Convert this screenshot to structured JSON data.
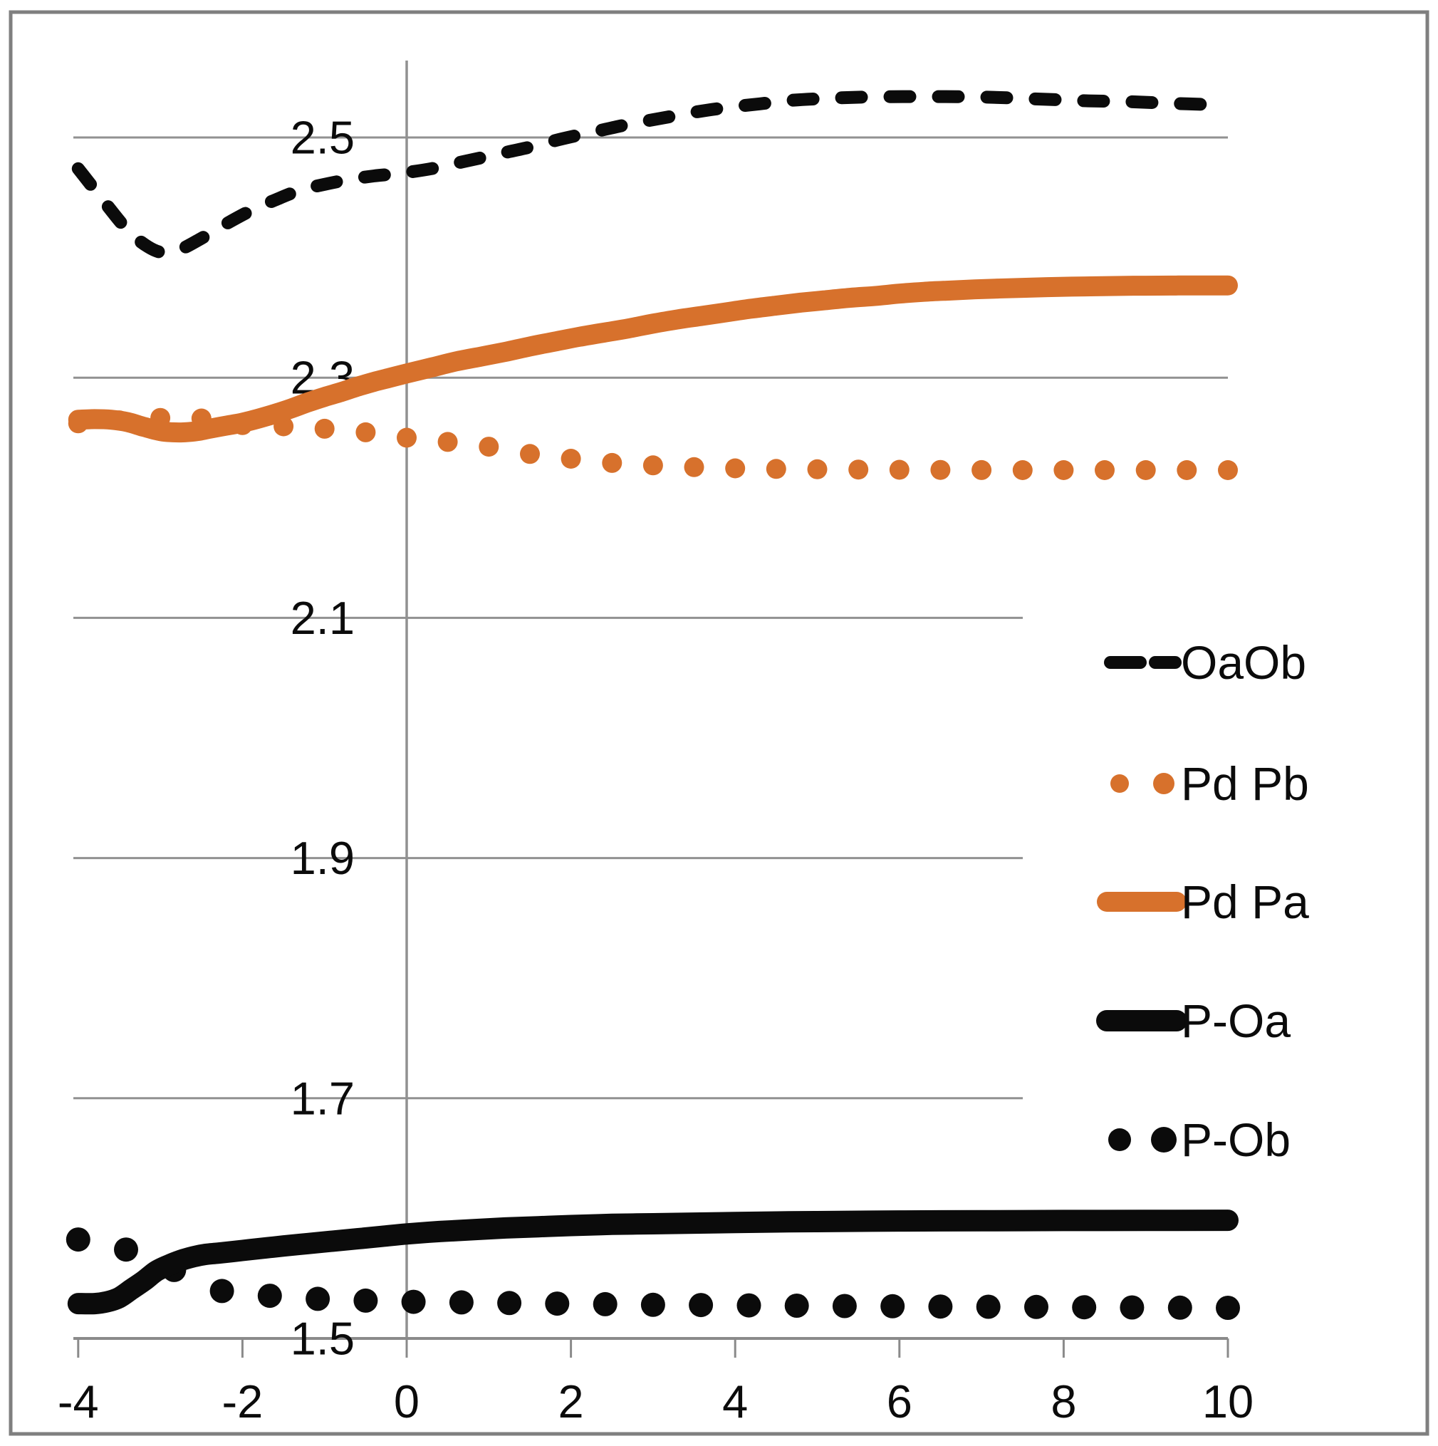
{
  "colors": {
    "orange": "#D7712C",
    "black": "#0B0B0B",
    "gridline": "#919191",
    "axis": "#8A8A8A",
    "border": "#7F7F7F",
    "background": "#FFFFFF"
  },
  "chart_data": {
    "type": "line",
    "title": "",
    "xlabel": "",
    "ylabel": "",
    "grid": true,
    "legend_position": "right-middle",
    "x_axis": {
      "min": -4,
      "max": 10,
      "tick_values": [
        -4,
        -2,
        0,
        2,
        4,
        6,
        8,
        10
      ],
      "tick_labels": [
        "-4",
        "-2",
        "0",
        "2",
        "4",
        "6",
        "8",
        "10"
      ]
    },
    "y_axis": {
      "min": 1.5,
      "max": 2.6,
      "tick_values": [
        2.5,
        2.3,
        2.1,
        1.9,
        1.7,
        1.5
      ],
      "tick_labels": [
        "2.5",
        "2.3",
        "2.1",
        "1.9",
        "1.7",
        "1.5"
      ]
    },
    "legend": {
      "items": [
        {
          "label": "OaOb"
        },
        {
          "label": "Pd Pb"
        },
        {
          "label": "Pd Pa"
        },
        {
          "label": "P-Oa"
        },
        {
          "label": "P-Ob"
        }
      ]
    },
    "series": [
      {
        "name": "OaOb",
        "type": "line",
        "style": "dashed",
        "color": "#0B0B0B",
        "width": 18,
        "points": [
          [
            -4,
            2.474
          ],
          [
            -3.7,
            2.448
          ],
          [
            -3.4,
            2.423
          ],
          [
            -3.15,
            2.409
          ],
          [
            -2.95,
            2.404
          ],
          [
            -2.75,
            2.407
          ],
          [
            -2.5,
            2.416
          ],
          [
            -2.2,
            2.428
          ],
          [
            -1.9,
            2.439
          ],
          [
            -1.6,
            2.448
          ],
          [
            -1.3,
            2.456
          ],
          [
            -1,
            2.461
          ],
          [
            -0.7,
            2.465
          ],
          [
            -0.4,
            2.468
          ],
          [
            -0.1,
            2.47
          ],
          [
            0.3,
            2.474
          ],
          [
            0.7,
            2.48
          ],
          [
            1.1,
            2.486
          ],
          [
            1.5,
            2.492
          ],
          [
            1.9,
            2.499
          ],
          [
            2.3,
            2.505
          ],
          [
            2.7,
            2.511
          ],
          [
            3.1,
            2.516
          ],
          [
            3.5,
            2.521
          ],
          [
            3.9,
            2.525
          ],
          [
            4.3,
            2.528
          ],
          [
            4.7,
            2.531
          ],
          [
            5.1,
            2.5325
          ],
          [
            5.5,
            2.5335
          ],
          [
            5.9,
            2.534
          ],
          [
            6.3,
            2.534
          ],
          [
            6.7,
            2.534
          ],
          [
            7.1,
            2.5335
          ],
          [
            7.5,
            2.5325
          ],
          [
            7.9,
            2.5315
          ],
          [
            8.3,
            2.5305
          ],
          [
            8.7,
            2.53
          ],
          [
            9.1,
            2.529
          ],
          [
            9.5,
            2.528
          ],
          [
            10,
            2.527
          ]
        ]
      },
      {
        "name": "Pd Pb",
        "type": "scatter",
        "style": "dots",
        "color": "#D7712C",
        "radius": 14,
        "points": [
          [
            -4,
            2.262
          ],
          [
            -3.5,
            2.2645
          ],
          [
            -3,
            2.2665
          ],
          [
            -2.5,
            2.266
          ],
          [
            -2,
            2.2605
          ],
          [
            -1.5,
            2.2595
          ],
          [
            -1,
            2.2575
          ],
          [
            -0.5,
            2.2545
          ],
          [
            0,
            2.25
          ],
          [
            0.5,
            2.2465
          ],
          [
            1,
            2.2425
          ],
          [
            1.5,
            2.2365
          ],
          [
            2,
            2.2325
          ],
          [
            2.5,
            2.229
          ],
          [
            3,
            2.227
          ],
          [
            3.5,
            2.2255
          ],
          [
            4,
            2.2245
          ],
          [
            4.5,
            2.224
          ],
          [
            5,
            2.2237
          ],
          [
            5.5,
            2.2235
          ],
          [
            6,
            2.2233
          ],
          [
            6.5,
            2.2232
          ],
          [
            7,
            2.2231
          ],
          [
            7.5,
            2.223
          ],
          [
            8,
            2.223
          ],
          [
            8.5,
            2.223
          ],
          [
            9,
            2.223
          ],
          [
            9.5,
            2.223
          ],
          [
            10,
            2.223
          ]
        ]
      },
      {
        "name": "Pd Pa",
        "type": "line",
        "style": "solid",
        "color": "#D7712C",
        "width": 28,
        "points": [
          [
            -4,
            2.265
          ],
          [
            -3.8,
            2.2655
          ],
          [
            -3.6,
            2.265
          ],
          [
            -3.4,
            2.263
          ],
          [
            -3.2,
            2.259
          ],
          [
            -3,
            2.2555
          ],
          [
            -2.85,
            2.2545
          ],
          [
            -2.7,
            2.2545
          ],
          [
            -2.55,
            2.2555
          ],
          [
            -2.4,
            2.2575
          ],
          [
            -2.2,
            2.26
          ],
          [
            -2,
            2.2625
          ],
          [
            -1.8,
            2.266
          ],
          [
            -1.6,
            2.27
          ],
          [
            -1.4,
            2.2745
          ],
          [
            -1.2,
            2.2795
          ],
          [
            -1,
            2.284
          ],
          [
            -0.8,
            2.288
          ],
          [
            -0.6,
            2.2925
          ],
          [
            -0.4,
            2.2965
          ],
          [
            -0.2,
            2.3
          ],
          [
            0,
            2.3035
          ],
          [
            0.3,
            2.3085
          ],
          [
            0.6,
            2.3135
          ],
          [
            0.9,
            2.3175
          ],
          [
            1.2,
            2.3215
          ],
          [
            1.5,
            2.326
          ],
          [
            1.8,
            2.33
          ],
          [
            2.1,
            2.334
          ],
          [
            2.4,
            2.3375
          ],
          [
            2.7,
            2.341
          ],
          [
            3,
            2.345
          ],
          [
            3.3,
            2.3485
          ],
          [
            3.6,
            2.3515
          ],
          [
            3.9,
            2.3545
          ],
          [
            4.2,
            2.3575
          ],
          [
            4.5,
            2.36
          ],
          [
            4.8,
            2.3625
          ],
          [
            5.1,
            2.3645
          ],
          [
            5.4,
            2.3665
          ],
          [
            5.7,
            2.368
          ],
          [
            6,
            2.37
          ],
          [
            6.3,
            2.3715
          ],
          [
            6.6,
            2.3725
          ],
          [
            6.9,
            2.3735
          ],
          [
            7.2,
            2.3742
          ],
          [
            7.5,
            2.3748
          ],
          [
            7.8,
            2.3754
          ],
          [
            8.1,
            2.3758
          ],
          [
            8.4,
            2.3761
          ],
          [
            8.7,
            2.3764
          ],
          [
            9,
            2.3766
          ],
          [
            9.3,
            2.3767
          ],
          [
            9.6,
            2.3768
          ],
          [
            10,
            2.3768
          ]
        ]
      },
      {
        "name": "P-Oa",
        "type": "line",
        "style": "solid",
        "color": "#0B0B0B",
        "width": 30,
        "points": [
          [
            -4,
            1.529
          ],
          [
            -3.8,
            1.529
          ],
          [
            -3.65,
            1.5305
          ],
          [
            -3.5,
            1.534
          ],
          [
            -3.35,
            1.541
          ],
          [
            -3.2,
            1.548
          ],
          [
            -3.05,
            1.556
          ],
          [
            -2.9,
            1.561
          ],
          [
            -2.75,
            1.565
          ],
          [
            -2.6,
            1.568
          ],
          [
            -2.45,
            1.57
          ],
          [
            -2.3,
            1.571
          ],
          [
            -2.1,
            1.5725
          ],
          [
            -1.9,
            1.574
          ],
          [
            -1.7,
            1.5755
          ],
          [
            -1.5,
            1.577
          ],
          [
            -1.2,
            1.579
          ],
          [
            -0.9,
            1.581
          ],
          [
            -0.6,
            1.583
          ],
          [
            -0.3,
            1.585
          ],
          [
            0,
            1.587
          ],
          [
            0.4,
            1.589
          ],
          [
            0.8,
            1.5905
          ],
          [
            1.2,
            1.592
          ],
          [
            1.6,
            1.593
          ],
          [
            2,
            1.594
          ],
          [
            2.5,
            1.595
          ],
          [
            3,
            1.5955
          ],
          [
            3.5,
            1.596
          ],
          [
            4,
            1.5965
          ],
          [
            4.5,
            1.597
          ],
          [
            5,
            1.5973
          ],
          [
            6,
            1.5978
          ],
          [
            7,
            1.598
          ],
          [
            8,
            1.5982
          ],
          [
            9,
            1.5983
          ],
          [
            10,
            1.5984
          ]
        ]
      },
      {
        "name": "P-Ob",
        "type": "scatter",
        "style": "dots",
        "color": "#0B0B0B",
        "radius": 17,
        "points": [
          [
            -4,
            1.5824
          ],
          [
            -3.417,
            1.574
          ],
          [
            -2.833,
            1.557
          ],
          [
            -2.25,
            1.5395
          ],
          [
            -1.667,
            1.5355
          ],
          [
            -1.083,
            1.533
          ],
          [
            -0.5,
            1.5315
          ],
          [
            0.083,
            1.5305
          ],
          [
            0.667,
            1.53
          ],
          [
            1.25,
            1.5295
          ],
          [
            1.833,
            1.529
          ],
          [
            2.417,
            1.5285
          ],
          [
            3,
            1.528
          ],
          [
            3.583,
            1.5278
          ],
          [
            4.167,
            1.5275
          ],
          [
            4.75,
            1.5273
          ],
          [
            5.333,
            1.527
          ],
          [
            5.917,
            1.5268
          ],
          [
            6.5,
            1.5266
          ],
          [
            7.083,
            1.5264
          ],
          [
            7.667,
            1.5262
          ],
          [
            8.25,
            1.526
          ],
          [
            8.833,
            1.5258
          ],
          [
            9.417,
            1.5256
          ],
          [
            10,
            1.5255
          ]
        ]
      }
    ]
  }
}
